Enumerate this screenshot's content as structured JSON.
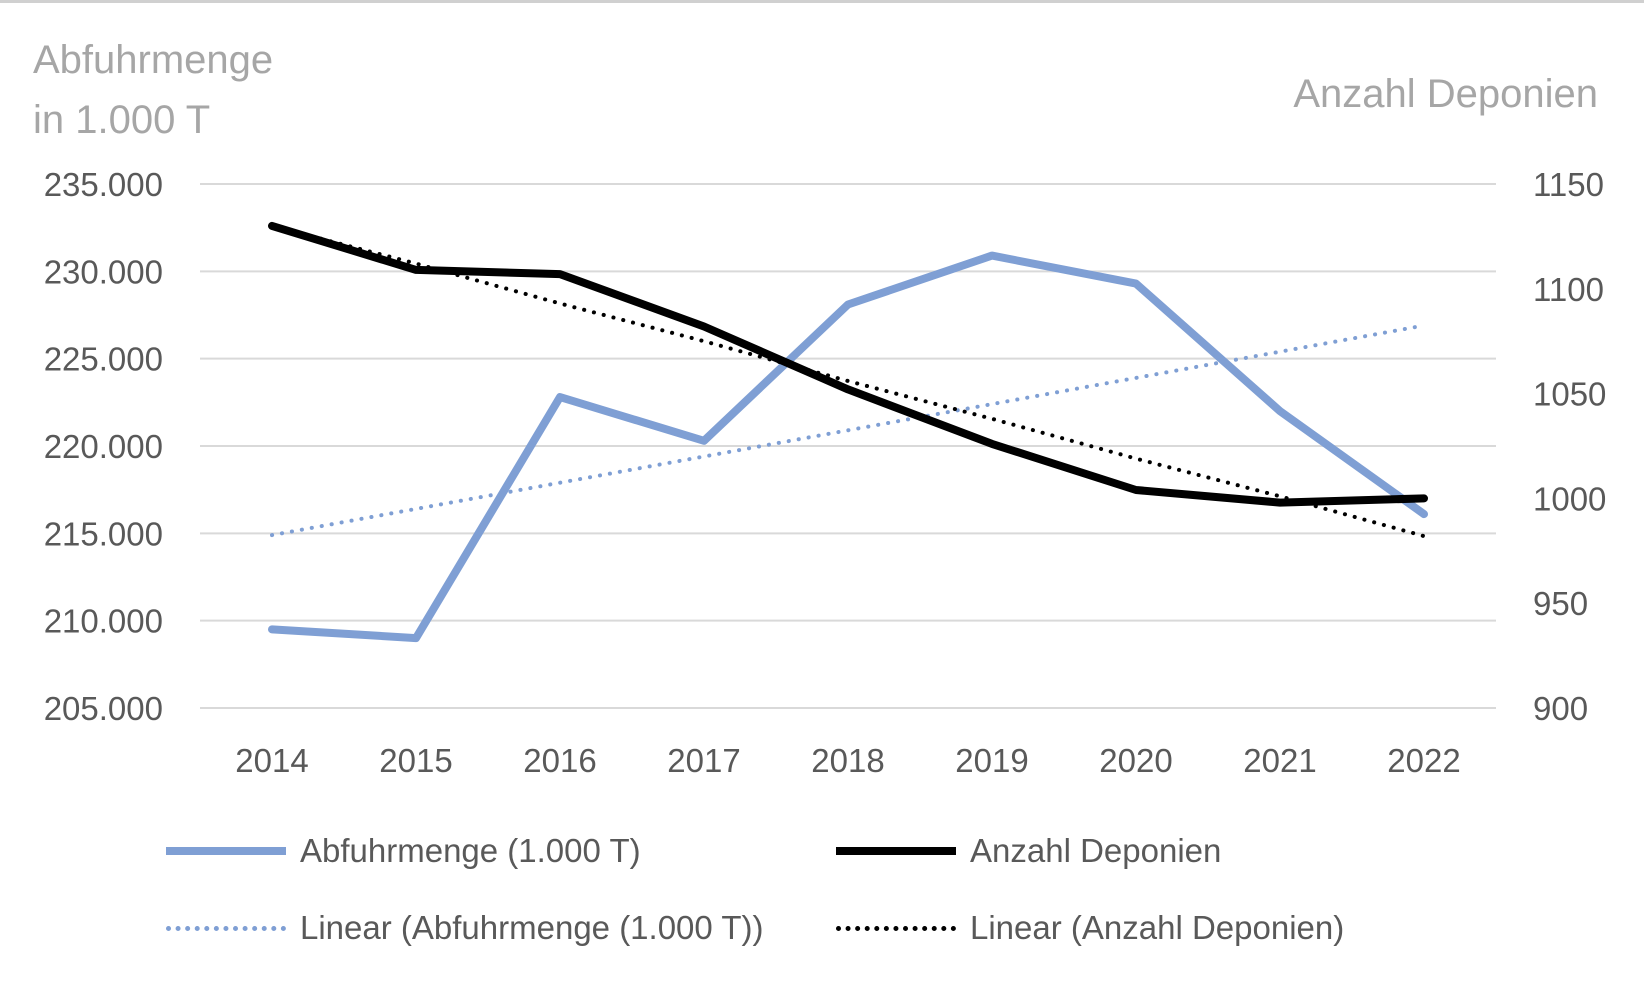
{
  "chart_data": {
    "type": "line",
    "categories": [
      "2014",
      "2015",
      "2016",
      "2017",
      "2018",
      "2019",
      "2020",
      "2021",
      "2022"
    ],
    "left_axis": {
      "label_line1": "Abfuhrmenge",
      "label_line2": "in 1.000 T",
      "ylim": [
        205000,
        235000
      ],
      "ticks": [
        205000,
        210000,
        215000,
        220000,
        225000,
        230000,
        235000
      ],
      "tick_labels": [
        "205.000",
        "210.000",
        "215.000",
        "220.000",
        "225.000",
        "230.000",
        "235.000"
      ]
    },
    "right_axis": {
      "label": "Anzahl Deponien",
      "ylim": [
        900,
        1150
      ],
      "ticks": [
        900,
        950,
        1000,
        1050,
        1100,
        1150
      ],
      "tick_labels": [
        "900",
        "950",
        "1000",
        "1050",
        "1100",
        "1150"
      ]
    },
    "grid": true,
    "legend_position": "bottom",
    "series": [
      {
        "name": "Abfuhrmenge (1.000 T)",
        "axis": "left",
        "style": "solid",
        "color": "#7f9fd4",
        "values": [
          209500,
          209000,
          222800,
          220300,
          228100,
          230900,
          229300,
          222000,
          216100
        ]
      },
      {
        "name": "Anzahl Deponien",
        "axis": "right",
        "style": "solid",
        "color": "#000000",
        "values": [
          1130,
          1109,
          1107,
          1082,
          1052,
          1026,
          1004,
          998,
          1000
        ]
      },
      {
        "name": "Linear (Abfuhrmenge (1.000 T))",
        "axis": "left",
        "style": "dotted",
        "color": "#7f9fd4",
        "values": [
          214900,
          216400,
          217900,
          219400,
          220900,
          222400,
          223900,
          225400,
          226900
        ]
      },
      {
        "name": "Linear (Anzahl Deponien)",
        "axis": "right",
        "style": "dotted",
        "color": "#000000",
        "values": [
          1130,
          1112,
          1093,
          1075,
          1056,
          1038,
          1019,
          1001,
          982
        ]
      }
    ]
  }
}
